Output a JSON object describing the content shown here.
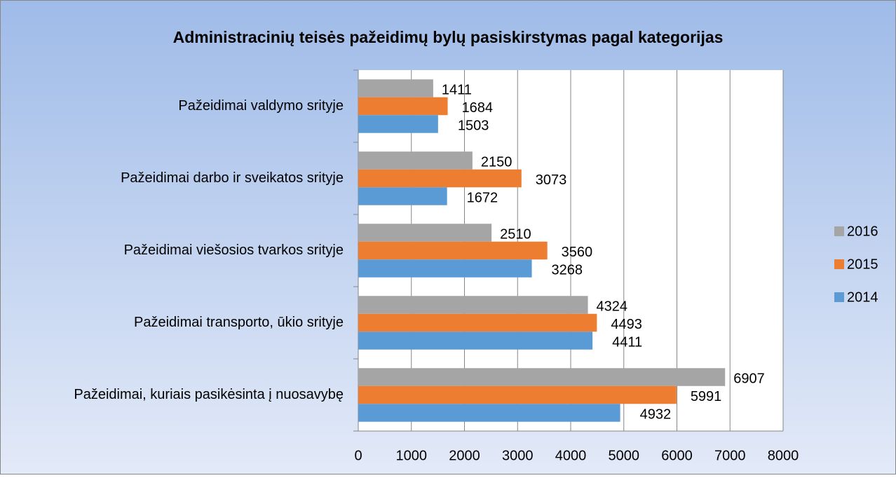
{
  "chart_data": {
    "type": "bar",
    "orientation": "horizontal",
    "title": "Administracinių teisės pažeidimų bylų pasiskirstymas pagal kategorijas",
    "categories": [
      "Pažeidimai valdymo srityje",
      "Pažeidimai darbo ir sveikatos srityje",
      "Pažeidimai viešosios tvarkos srityje",
      "Pažeidimai transporto, ūkio srityje",
      "Pažeidimai, kuriais pasikėsinta į nuosavybę"
    ],
    "series": [
      {
        "name": "2016",
        "color": "#a5a5a5",
        "values": [
          1411,
          2150,
          2510,
          4324,
          6907
        ]
      },
      {
        "name": "2015",
        "color": "#ed7d31",
        "values": [
          1684,
          3073,
          3560,
          4493,
          5991
        ]
      },
      {
        "name": "2014",
        "color": "#5b9bd5",
        "values": [
          1503,
          1672,
          3268,
          4411,
          4932
        ]
      }
    ],
    "xlim": [
      0,
      8000
    ],
    "xticks": [
      0,
      1000,
      2000,
      3000,
      4000,
      5000,
      6000,
      7000,
      8000
    ],
    "grid": true,
    "legend": "right"
  }
}
